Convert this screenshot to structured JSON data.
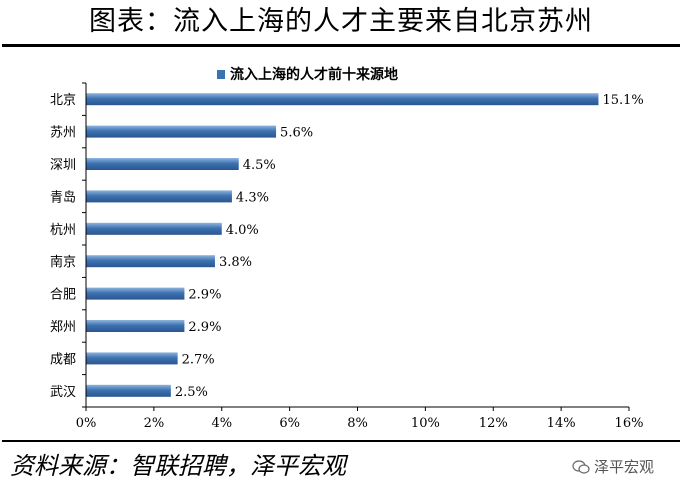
{
  "title": "图表：流入上海的人才主要来自北京苏州",
  "source": "资料来源：智联招聘，泽平宏观",
  "watermark": "泽平宏观",
  "chart_data": {
    "type": "bar",
    "orientation": "horizontal",
    "legend": {
      "label": "流入上海的人才前十来源地",
      "position": "top"
    },
    "categories": [
      "北京",
      "苏州",
      "深圳",
      "青岛",
      "杭州",
      "南京",
      "合肥",
      "郑州",
      "成都",
      "武汉"
    ],
    "series": [
      {
        "name": "流入上海的人才前十来源地",
        "values": [
          15.1,
          5.6,
          4.5,
          4.3,
          4.0,
          3.8,
          2.9,
          2.9,
          2.7,
          2.5
        ]
      }
    ],
    "data_labels": [
      "15.1%",
      "5.6%",
      "4.5%",
      "4.3%",
      "4.0%",
      "3.8%",
      "2.9%",
      "2.9%",
      "2.7%",
      "2.5%"
    ],
    "xlim": [
      0,
      16
    ],
    "xticks": [
      0,
      2,
      4,
      6,
      8,
      10,
      12,
      14,
      16
    ],
    "xtick_labels": [
      "0%",
      "2%",
      "4%",
      "6%",
      "8%",
      "10%",
      "12%",
      "14%",
      "16%"
    ],
    "grid": false,
    "colors": {
      "bar": "#3d72b0",
      "bar_light": "#8fb4de",
      "bar_dark": "#2a5690"
    }
  }
}
